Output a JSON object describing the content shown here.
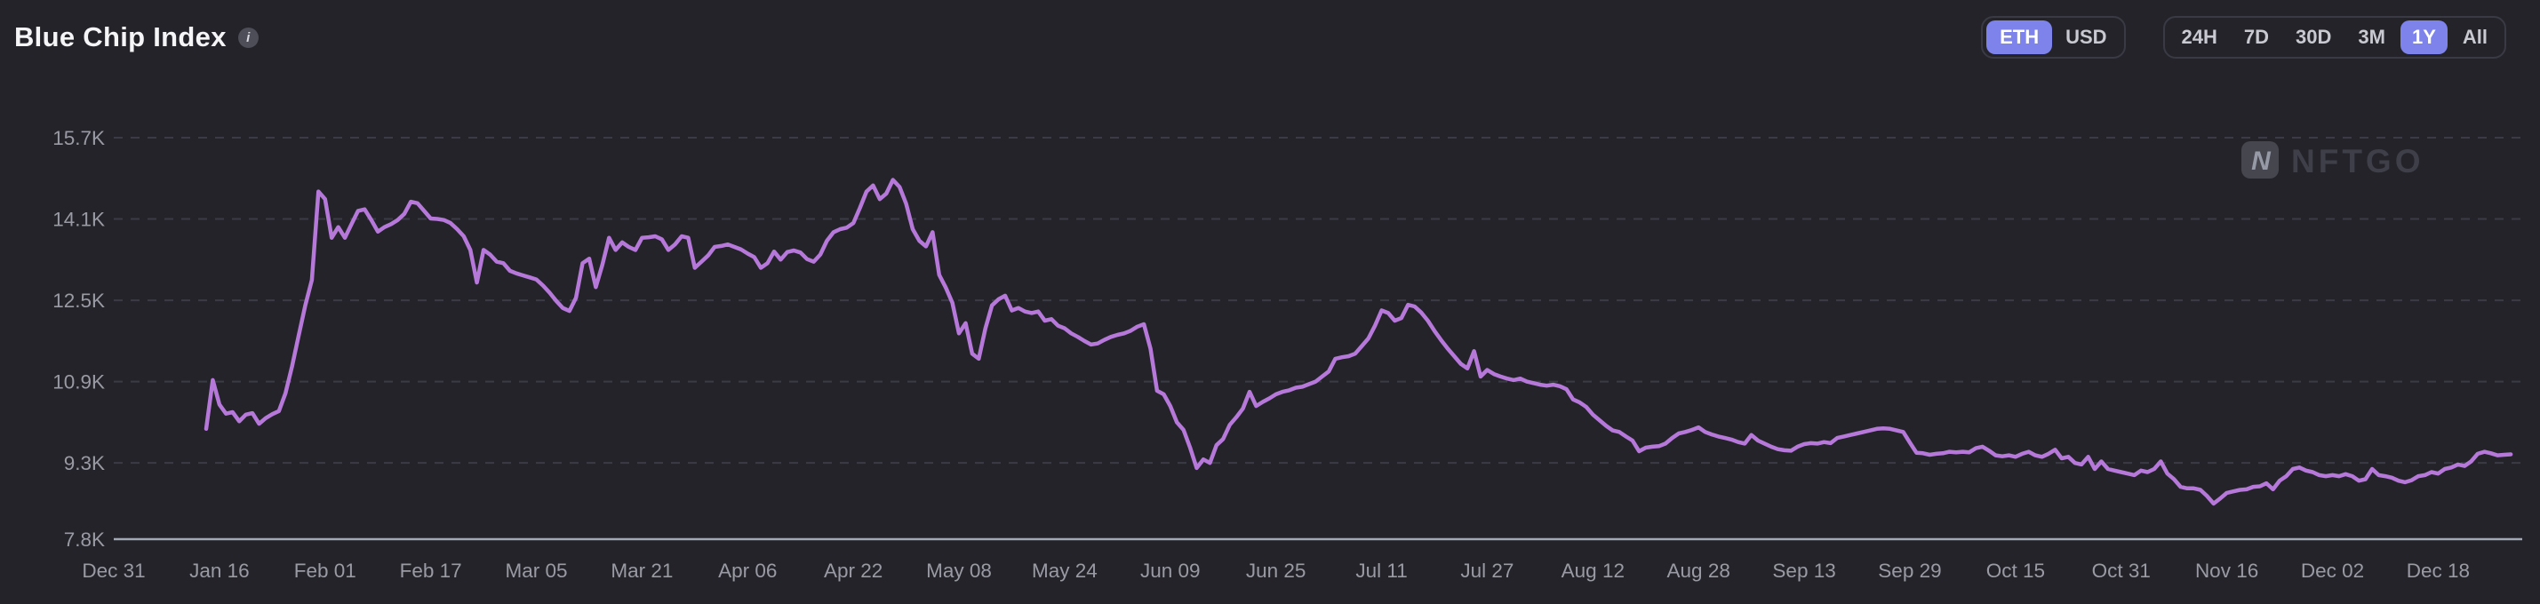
{
  "header": {
    "title": "Blue Chip Index",
    "info_glyph": "i"
  },
  "controls": {
    "currency": {
      "options": [
        "ETH",
        "USD"
      ],
      "selected": "ETH"
    },
    "timeframe": {
      "options": [
        "24H",
        "7D",
        "30D",
        "3M",
        "1Y",
        "All"
      ],
      "selected": "1Y"
    }
  },
  "watermark": {
    "logo_letter": "N",
    "brand": "NFTGO"
  },
  "colors": {
    "background": "#232329",
    "accent": "#7d83eb",
    "line": "#b678d9",
    "grid": "#3b3b45",
    "axis_line": "#a2a8b4",
    "axis_text": "#9a9aa4",
    "title_text": "#f5f5f7",
    "inactive_text": "#c9c9d2",
    "group_border": "#3a3a45",
    "watermark_badge": "#45464e",
    "watermark_letter": "#9699a6",
    "watermark_text": "#3e3f49"
  },
  "chart_data": {
    "type": "line",
    "title": "Blue Chip Index",
    "subtitle": "1Y view, ETH denominated",
    "legend": "none",
    "grid": "horizontal-dashed",
    "unit": "thousand ETH (K)",
    "ylim": [
      7.8,
      15.7
    ],
    "y_axis": {
      "ticks": [
        {
          "label": "15.7K",
          "value": 15.7
        },
        {
          "label": "14.1K",
          "value": 14.1
        },
        {
          "label": "12.5K",
          "value": 12.5
        },
        {
          "label": "10.9K",
          "value": 10.9
        },
        {
          "label": "9.3K",
          "value": 9.3
        },
        {
          "label": "7.8K",
          "value": 7.8
        }
      ]
    },
    "x_axis": {
      "day0_date": "Jan 14",
      "ticks": [
        {
          "label": "Dec 31",
          "day": -14
        },
        {
          "label": "Jan 16",
          "day": 2
        },
        {
          "label": "Feb 01",
          "day": 18
        },
        {
          "label": "Feb 17",
          "day": 34
        },
        {
          "label": "Mar 05",
          "day": 50
        },
        {
          "label": "Mar 21",
          "day": 66
        },
        {
          "label": "Apr 06",
          "day": 82
        },
        {
          "label": "Apr 22",
          "day": 98
        },
        {
          "label": "May 08",
          "day": 114
        },
        {
          "label": "May 24",
          "day": 130
        },
        {
          "label": "Jun 09",
          "day": 146
        },
        {
          "label": "Jun 25",
          "day": 162
        },
        {
          "label": "Jul 11",
          "day": 178
        },
        {
          "label": "Jul 27",
          "day": 194
        },
        {
          "label": "Aug 12",
          "day": 210
        },
        {
          "label": "Aug 28",
          "day": 226
        },
        {
          "label": "Sep 13",
          "day": 242
        },
        {
          "label": "Sep 29",
          "day": 258
        },
        {
          "label": "Oct 15",
          "day": 274
        },
        {
          "label": "Oct 31",
          "day": 290
        },
        {
          "label": "Nov 16",
          "day": 306
        },
        {
          "label": "Dec 02",
          "day": 322
        },
        {
          "label": "Dec 18",
          "day": 338
        }
      ]
    },
    "series": [
      {
        "name": "Blue Chip Index (ETH)",
        "color": "#b678d9",
        "start_day": 0,
        "day_step": 1,
        "values": [
          9.97,
          10.93,
          10.45,
          10.27,
          10.3,
          10.12,
          10.25,
          10.28,
          10.07,
          10.18,
          10.26,
          10.32,
          10.67,
          11.2,
          11.8,
          12.4,
          12.9,
          14.64,
          14.49,
          13.73,
          13.94,
          13.73,
          14.0,
          14.26,
          14.29,
          14.08,
          13.85,
          13.94,
          14.0,
          14.08,
          14.2,
          14.44,
          14.41,
          14.26,
          14.11,
          14.1,
          14.08,
          14.02,
          13.9,
          13.76,
          13.49,
          12.85,
          13.49,
          13.4,
          13.26,
          13.23,
          13.08,
          13.03,
          12.99,
          12.95,
          12.91,
          12.79,
          12.65,
          12.49,
          12.35,
          12.29,
          12.55,
          13.23,
          13.32,
          12.76,
          13.2,
          13.73,
          13.49,
          13.64,
          13.55,
          13.49,
          13.73,
          13.74,
          13.76,
          13.7,
          13.49,
          13.6,
          13.76,
          13.73,
          13.14,
          13.26,
          13.38,
          13.55,
          13.57,
          13.6,
          13.55,
          13.5,
          13.42,
          13.35,
          13.14,
          13.23,
          13.46,
          13.3,
          13.45,
          13.48,
          13.44,
          13.31,
          13.26,
          13.4,
          13.67,
          13.84,
          13.9,
          13.93,
          14.02,
          14.32,
          14.64,
          14.76,
          14.49,
          14.6,
          14.87,
          14.73,
          14.4,
          13.9,
          13.67,
          13.56,
          13.84,
          13.0,
          12.75,
          12.45,
          11.85,
          12.05,
          11.45,
          11.35,
          11.95,
          12.4,
          12.52,
          12.59,
          12.3,
          12.35,
          12.28,
          12.25,
          12.28,
          12.1,
          12.13,
          12.0,
          11.95,
          11.85,
          11.78,
          11.7,
          11.63,
          11.65,
          11.72,
          11.78,
          11.82,
          11.85,
          11.9,
          11.98,
          12.03,
          11.55,
          10.72,
          10.65,
          10.42,
          10.1,
          9.95,
          9.6,
          9.2,
          9.37,
          9.3,
          9.65,
          9.77,
          10.05,
          10.2,
          10.37,
          10.7,
          10.42,
          10.5,
          10.57,
          10.65,
          10.7,
          10.73,
          10.78,
          10.8,
          10.85,
          10.9,
          11.0,
          11.1,
          11.35,
          11.38,
          11.4,
          11.45,
          11.6,
          11.75,
          12.0,
          12.3,
          12.25,
          12.1,
          12.15,
          12.41,
          12.38,
          12.26,
          12.1,
          11.9,
          11.72,
          11.55,
          11.4,
          11.25,
          11.16,
          11.5,
          11.0,
          11.13,
          11.05,
          11.0,
          10.96,
          10.93,
          10.96,
          10.9,
          10.87,
          10.84,
          10.82,
          10.84,
          10.81,
          10.75,
          10.55,
          10.49,
          10.4,
          10.25,
          10.14,
          10.03,
          9.94,
          9.91,
          9.82,
          9.74,
          9.53,
          9.6,
          9.62,
          9.63,
          9.68,
          9.79,
          9.88,
          9.91,
          9.95,
          10.0,
          9.91,
          9.86,
          9.82,
          9.79,
          9.76,
          9.71,
          9.68,
          9.85,
          9.74,
          9.68,
          9.62,
          9.57,
          9.55,
          9.54,
          9.62,
          9.67,
          9.69,
          9.68,
          9.71,
          9.69,
          9.79,
          9.82,
          9.85,
          9.88,
          9.91,
          9.94,
          9.97,
          9.98,
          9.97,
          9.94,
          9.91,
          9.7,
          9.5,
          9.49,
          9.46,
          9.48,
          9.49,
          9.52,
          9.51,
          9.52,
          9.51,
          9.59,
          9.62,
          9.54,
          9.45,
          9.43,
          9.45,
          9.42,
          9.48,
          9.52,
          9.45,
          9.42,
          9.48,
          9.56,
          9.39,
          9.42,
          9.3,
          9.27,
          9.42,
          9.18,
          9.33,
          9.18,
          9.15,
          9.12,
          9.09,
          9.06,
          9.15,
          9.12,
          9.18,
          9.33,
          9.09,
          8.98,
          8.83,
          8.8,
          8.8,
          8.77,
          8.65,
          8.5,
          8.6,
          8.71,
          8.74,
          8.77,
          8.78,
          8.83,
          8.84,
          8.9,
          8.78,
          8.95,
          9.04,
          9.18,
          9.21,
          9.15,
          9.12,
          9.06,
          9.04,
          9.06,
          9.04,
          9.08,
          9.04,
          8.95,
          8.98,
          9.18,
          9.06,
          9.04,
          9.01,
          8.95,
          8.92,
          8.96,
          9.04,
          9.06,
          9.12,
          9.09,
          9.18,
          9.21,
          9.27,
          9.24,
          9.33,
          9.48,
          9.52,
          9.49,
          9.45,
          9.46,
          9.47
        ]
      }
    ]
  }
}
